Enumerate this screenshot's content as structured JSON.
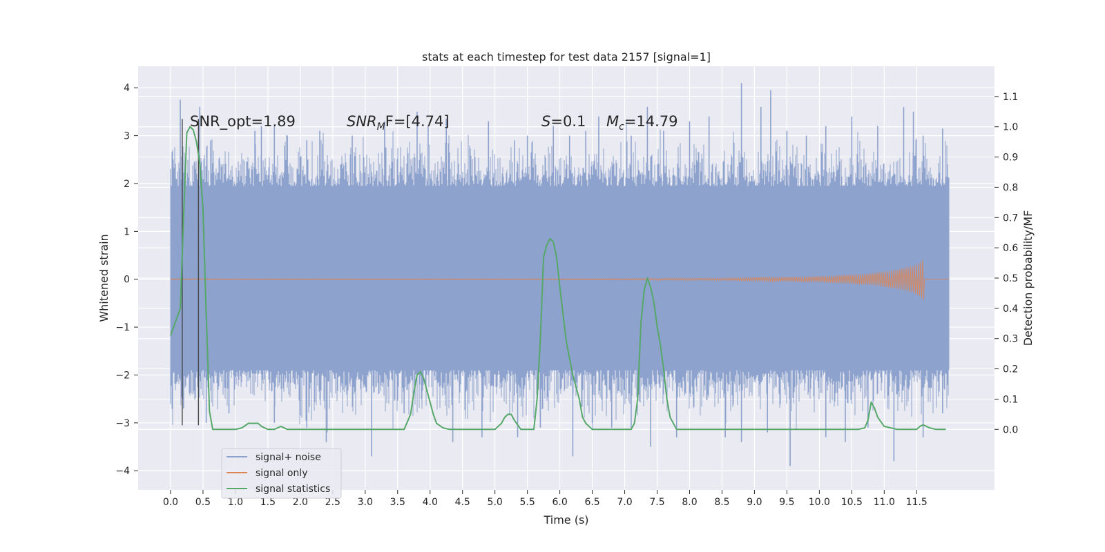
{
  "chart_data": {
    "type": "line",
    "title": "stats at each timestep for test data 2157 [signal=1]",
    "xlabel": "Time (s)",
    "ylabel": "Whitened strain",
    "ylabel_right": "Detection probability/MF",
    "xlim": [
      -0.5,
      12.7
    ],
    "ylim": [
      -4.4,
      4.45
    ],
    "ylim_right": [
      -0.2,
      1.2
    ],
    "x_ticks": [
      "0.0",
      "0.5",
      "1.0",
      "1.5",
      "2.0",
      "2.5",
      "3.0",
      "3.5",
      "4.0",
      "4.5",
      "5.0",
      "5.5",
      "6.0",
      "6.5",
      "7.0",
      "7.5",
      "8.0",
      "8.5",
      "9.0",
      "9.5",
      "10.0",
      "10.5",
      "11.0",
      "11.5"
    ],
    "y_ticks": [
      "4",
      "3",
      "2",
      "1",
      "0",
      "−1",
      "−2",
      "−3",
      "−4"
    ],
    "y_ticks_right": [
      "1.1",
      "1.0",
      "0.9",
      "0.8",
      "0.7",
      "0.6",
      "0.5",
      "0.4",
      "0.3",
      "0.2",
      "0.1",
      "0.0"
    ],
    "grid": true,
    "legend_position": "lower-left",
    "annotations": {
      "snr_opt": "SNR_opt=1.89",
      "snr_mf_main": "SNR",
      "snr_mf_sub": "M",
      "snr_mf_rest": "F=[4.74]",
      "s_label": "S",
      "s_value": "=0.1",
      "mc_main": "M",
      "mc_sub": "c",
      "mc_value": "=14.79"
    },
    "vlines_x": [
      0.18,
      0.43
    ],
    "series": [
      {
        "name": "signal+ noise",
        "color": "#8da2cc",
        "description_values": {
          "x_range": [
            0.0,
            12.0
          ],
          "dense_band": [
            -1.9,
            1.95
          ],
          "peaks_upper": [
            [
              0.15,
              3.75
            ],
            [
              0.45,
              3.6
            ],
            [
              0.62,
              2.9
            ],
            [
              1.3,
              3.1
            ],
            [
              1.4,
              3.2
            ],
            [
              1.6,
              3.2
            ],
            [
              1.8,
              3.0
            ],
            [
              2.1,
              2.9
            ],
            [
              2.3,
              3.1
            ],
            [
              2.8,
              3.0
            ],
            [
              3.3,
              3.3
            ],
            [
              3.8,
              3.5
            ],
            [
              3.97,
              3.2
            ],
            [
              4.25,
              3.35
            ],
            [
              4.9,
              3.3
            ],
            [
              5.3,
              2.9
            ],
            [
              5.5,
              3.0
            ],
            [
              5.9,
              3.2
            ],
            [
              6.15,
              3.0
            ],
            [
              6.4,
              3.1
            ],
            [
              6.6,
              3.4
            ],
            [
              7.1,
              3.0
            ],
            [
              7.35,
              3.6
            ],
            [
              7.6,
              3.1
            ],
            [
              8.0,
              3.3
            ],
            [
              8.3,
              3.4
            ],
            [
              8.8,
              4.1
            ],
            [
              9.1,
              3.6
            ],
            [
              9.25,
              3.95
            ],
            [
              9.5,
              3.1
            ],
            [
              9.8,
              3.0
            ],
            [
              10.1,
              3.2
            ],
            [
              10.5,
              3.4
            ],
            [
              10.9,
              3.2
            ],
            [
              11.3,
              3.6
            ],
            [
              11.45,
              3.5
            ],
            [
              11.6,
              3.0
            ],
            [
              11.9,
              3.15
            ]
          ],
          "peaks_lower": [
            [
              0.2,
              -2.7
            ],
            [
              0.55,
              -3.0
            ],
            [
              0.9,
              -2.8
            ],
            [
              1.6,
              -3.0
            ],
            [
              2.1,
              -3.1
            ],
            [
              2.4,
              -3.4
            ],
            [
              3.1,
              -3.7
            ],
            [
              3.6,
              -2.8
            ],
            [
              4.35,
              -3.4
            ],
            [
              4.8,
              -3.3
            ],
            [
              5.35,
              -3.3
            ],
            [
              5.7,
              -3.1
            ],
            [
              6.2,
              -3.7
            ],
            [
              6.5,
              -3.0
            ],
            [
              6.8,
              -3.1
            ],
            [
              7.1,
              -3.1
            ],
            [
              7.4,
              -3.5
            ],
            [
              7.8,
              -3.3
            ],
            [
              8.55,
              -3.3
            ],
            [
              8.8,
              -3.4
            ],
            [
              9.2,
              -3.2
            ],
            [
              9.55,
              -3.9
            ],
            [
              10.1,
              -3.3
            ],
            [
              10.4,
              -3.4
            ],
            [
              10.75,
              -3.1
            ],
            [
              11.15,
              -3.8
            ],
            [
              11.6,
              -3.3
            ],
            [
              11.9,
              -2.8
            ]
          ]
        }
      },
      {
        "name": "signal only",
        "color": "#dd8452",
        "description_values": {
          "x_range": [
            0.0,
            11.62
          ],
          "envelope": [
            [
              0.0,
              0.01
            ],
            [
              6.0,
              0.01
            ],
            [
              8.5,
              0.02
            ],
            [
              10.0,
              0.06
            ],
            [
              10.8,
              0.12
            ],
            [
              11.2,
              0.2
            ],
            [
              11.45,
              0.28
            ],
            [
              11.55,
              0.35
            ],
            [
              11.62,
              0.45
            ]
          ]
        }
      },
      {
        "name": "signal statistics",
        "color": "#55a868",
        "axis": "right",
        "x": [
          0.0,
          0.1,
          0.15,
          0.2,
          0.25,
          0.3,
          0.35,
          0.4,
          0.45,
          0.5,
          0.55,
          0.6,
          0.65,
          0.7,
          0.8,
          0.9,
          1.0,
          1.1,
          1.2,
          1.3,
          1.35,
          1.4,
          1.5,
          1.6,
          1.7,
          1.8,
          1.9,
          2.0,
          2.2,
          2.4,
          2.6,
          2.8,
          3.0,
          3.2,
          3.4,
          3.6,
          3.7,
          3.75,
          3.8,
          3.85,
          3.9,
          3.95,
          4.0,
          4.05,
          4.1,
          4.2,
          4.3,
          4.5,
          4.8,
          5.0,
          5.1,
          5.15,
          5.2,
          5.25,
          5.3,
          5.4,
          5.5,
          5.6,
          5.65,
          5.7,
          5.75,
          5.8,
          5.85,
          5.9,
          5.95,
          6.0,
          6.1,
          6.2,
          6.3,
          6.35,
          6.4,
          6.5,
          6.6,
          6.8,
          7.0,
          7.1,
          7.15,
          7.2,
          7.25,
          7.3,
          7.35,
          7.4,
          7.45,
          7.5,
          7.55,
          7.6,
          7.65,
          7.7,
          7.8,
          8.0,
          8.5,
          9.0,
          9.5,
          10.0,
          10.5,
          10.6,
          10.7,
          10.75,
          10.8,
          10.85,
          10.9,
          11.0,
          11.2,
          11.4,
          11.5,
          11.55,
          11.6,
          11.7,
          11.8,
          11.9,
          11.95
        ],
        "values": [
          0.31,
          0.37,
          0.4,
          0.7,
          0.98,
          1.0,
          0.99,
          0.95,
          0.88,
          0.73,
          0.38,
          0.06,
          0.0,
          0.0,
          0.0,
          0.0,
          0.0,
          0.005,
          0.02,
          0.02,
          0.02,
          0.01,
          0.0,
          0.0,
          0.01,
          0.0,
          0.0,
          0.0,
          0.0,
          0.0,
          0.0,
          0.0,
          0.0,
          0.0,
          0.0,
          0.0,
          0.05,
          0.12,
          0.18,
          0.19,
          0.17,
          0.13,
          0.09,
          0.05,
          0.02,
          0.005,
          0.0,
          0.0,
          0.0,
          0.0,
          0.02,
          0.04,
          0.05,
          0.05,
          0.03,
          0.0,
          0.0,
          0.0,
          0.1,
          0.3,
          0.57,
          0.61,
          0.63,
          0.62,
          0.57,
          0.47,
          0.29,
          0.18,
          0.1,
          0.04,
          0.02,
          0.0,
          0.0,
          0.0,
          0.0,
          0.0,
          0.02,
          0.1,
          0.35,
          0.46,
          0.5,
          0.47,
          0.42,
          0.34,
          0.28,
          0.2,
          0.1,
          0.04,
          0.0,
          0.0,
          0.0,
          0.0,
          0.0,
          0.0,
          0.0,
          0.0,
          0.005,
          0.03,
          0.09,
          0.07,
          0.04,
          0.01,
          0.0,
          0.0,
          0.0,
          0.01,
          0.015,
          0.005,
          0.0,
          0.0,
          0.0
        ]
      }
    ]
  }
}
